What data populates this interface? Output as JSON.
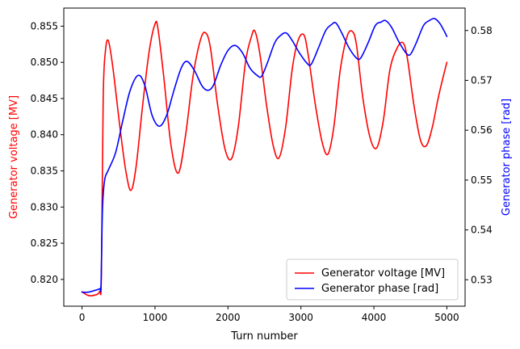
{
  "chart_data": {
    "type": "line",
    "xlabel": "Turn number",
    "ylabel_left": "Generator voltage [MV]",
    "ylabel_right": "Generator phase [rad]",
    "xlim": [
      -250,
      5250
    ],
    "ylim_left": [
      0.8163,
      0.8575
    ],
    "ylim_right": [
      0.5247,
      0.5845
    ],
    "x_ticks": [
      0,
      1000,
      2000,
      3000,
      4000,
      5000
    ],
    "y_left_ticks": [
      0.82,
      0.825,
      0.83,
      0.835,
      0.84,
      0.845,
      0.85,
      0.855
    ],
    "y_right_ticks": [
      0.53,
      0.54,
      0.55,
      0.56,
      0.57,
      0.58
    ],
    "legend_position": "lower-right",
    "grid": false,
    "series": [
      {
        "name": "Generator voltage [MV]",
        "axis": "left",
        "color": "#ff0000",
        "points": [
          [
            0,
            0.8183
          ],
          [
            80,
            0.8178
          ],
          [
            160,
            0.8178
          ],
          [
            240,
            0.8183
          ],
          [
            265,
            0.8205
          ],
          [
            290,
            0.845
          ],
          [
            320,
            0.8515
          ],
          [
            360,
            0.853
          ],
          [
            420,
            0.8495
          ],
          [
            520,
            0.841
          ],
          [
            600,
            0.835
          ],
          [
            670,
            0.8323
          ],
          [
            740,
            0.8355
          ],
          [
            830,
            0.844
          ],
          [
            920,
            0.8515
          ],
          [
            1000,
            0.8553
          ],
          [
            1040,
            0.8547
          ],
          [
            1120,
            0.848
          ],
          [
            1220,
            0.8385
          ],
          [
            1320,
            0.8347
          ],
          [
            1420,
            0.84
          ],
          [
            1520,
            0.848
          ],
          [
            1620,
            0.853
          ],
          [
            1690,
            0.8541
          ],
          [
            1760,
            0.852
          ],
          [
            1860,
            0.844
          ],
          [
            1960,
            0.838
          ],
          [
            2050,
            0.8367
          ],
          [
            2140,
            0.841
          ],
          [
            2240,
            0.85
          ],
          [
            2320,
            0.8535
          ],
          [
            2370,
            0.8543
          ],
          [
            2440,
            0.851
          ],
          [
            2530,
            0.844
          ],
          [
            2620,
            0.8385
          ],
          [
            2700,
            0.8368
          ],
          [
            2790,
            0.841
          ],
          [
            2880,
            0.849
          ],
          [
            2960,
            0.853
          ],
          [
            3040,
            0.8538
          ],
          [
            3100,
            0.851
          ],
          [
            3200,
            0.844
          ],
          [
            3290,
            0.839
          ],
          [
            3370,
            0.8373
          ],
          [
            3450,
            0.841
          ],
          [
            3540,
            0.849
          ],
          [
            3630,
            0.8535
          ],
          [
            3700,
            0.8543
          ],
          [
            3760,
            0.8525
          ],
          [
            3850,
            0.845
          ],
          [
            3950,
            0.8395
          ],
          [
            4040,
            0.8382
          ],
          [
            4130,
            0.842
          ],
          [
            4220,
            0.849
          ],
          [
            4320,
            0.852
          ],
          [
            4400,
            0.8527
          ],
          [
            4460,
            0.8505
          ],
          [
            4550,
            0.844
          ],
          [
            4640,
            0.8392
          ],
          [
            4720,
            0.8385
          ],
          [
            4800,
            0.841
          ],
          [
            4880,
            0.845
          ],
          [
            4950,
            0.848
          ],
          [
            5000,
            0.85
          ]
        ]
      },
      {
        "name": "Generator phase [rad]",
        "axis": "right",
        "color": "#0000ff",
        "points": [
          [
            0,
            0.5275
          ],
          [
            80,
            0.5275
          ],
          [
            160,
            0.5278
          ],
          [
            240,
            0.5282
          ],
          [
            260,
            0.529
          ],
          [
            280,
            0.544
          ],
          [
            310,
            0.55
          ],
          [
            360,
            0.552
          ],
          [
            460,
            0.5555
          ],
          [
            560,
            0.562
          ],
          [
            660,
            0.568
          ],
          [
            770,
            0.571
          ],
          [
            860,
            0.569
          ],
          [
            960,
            0.563
          ],
          [
            1060,
            0.5608
          ],
          [
            1160,
            0.563
          ],
          [
            1260,
            0.568
          ],
          [
            1360,
            0.5725
          ],
          [
            1440,
            0.5738
          ],
          [
            1540,
            0.572
          ],
          [
            1640,
            0.569
          ],
          [
            1720,
            0.568
          ],
          [
            1800,
            0.569
          ],
          [
            1900,
            0.573
          ],
          [
            2000,
            0.576
          ],
          [
            2100,
            0.577
          ],
          [
            2200,
            0.5755
          ],
          [
            2300,
            0.5725
          ],
          [
            2400,
            0.571
          ],
          [
            2460,
            0.5708
          ],
          [
            2540,
            0.5735
          ],
          [
            2640,
            0.5775
          ],
          [
            2720,
            0.579
          ],
          [
            2800,
            0.5795
          ],
          [
            2880,
            0.578
          ],
          [
            2980,
            0.5755
          ],
          [
            3080,
            0.5735
          ],
          [
            3140,
            0.5732
          ],
          [
            3240,
            0.5765
          ],
          [
            3340,
            0.58
          ],
          [
            3420,
            0.5812
          ],
          [
            3480,
            0.5815
          ],
          [
            3560,
            0.5795
          ],
          [
            3660,
            0.5765
          ],
          [
            3760,
            0.5745
          ],
          [
            3820,
            0.5745
          ],
          [
            3920,
            0.5775
          ],
          [
            4020,
            0.581
          ],
          [
            4100,
            0.5817
          ],
          [
            4160,
            0.582
          ],
          [
            4240,
            0.5807
          ],
          [
            4340,
            0.5778
          ],
          [
            4440,
            0.5755
          ],
          [
            4500,
            0.5752
          ],
          [
            4580,
            0.5775
          ],
          [
            4680,
            0.581
          ],
          [
            4760,
            0.582
          ],
          [
            4830,
            0.5824
          ],
          [
            4900,
            0.5815
          ],
          [
            4960,
            0.58
          ],
          [
            5000,
            0.5788
          ]
        ]
      }
    ]
  }
}
